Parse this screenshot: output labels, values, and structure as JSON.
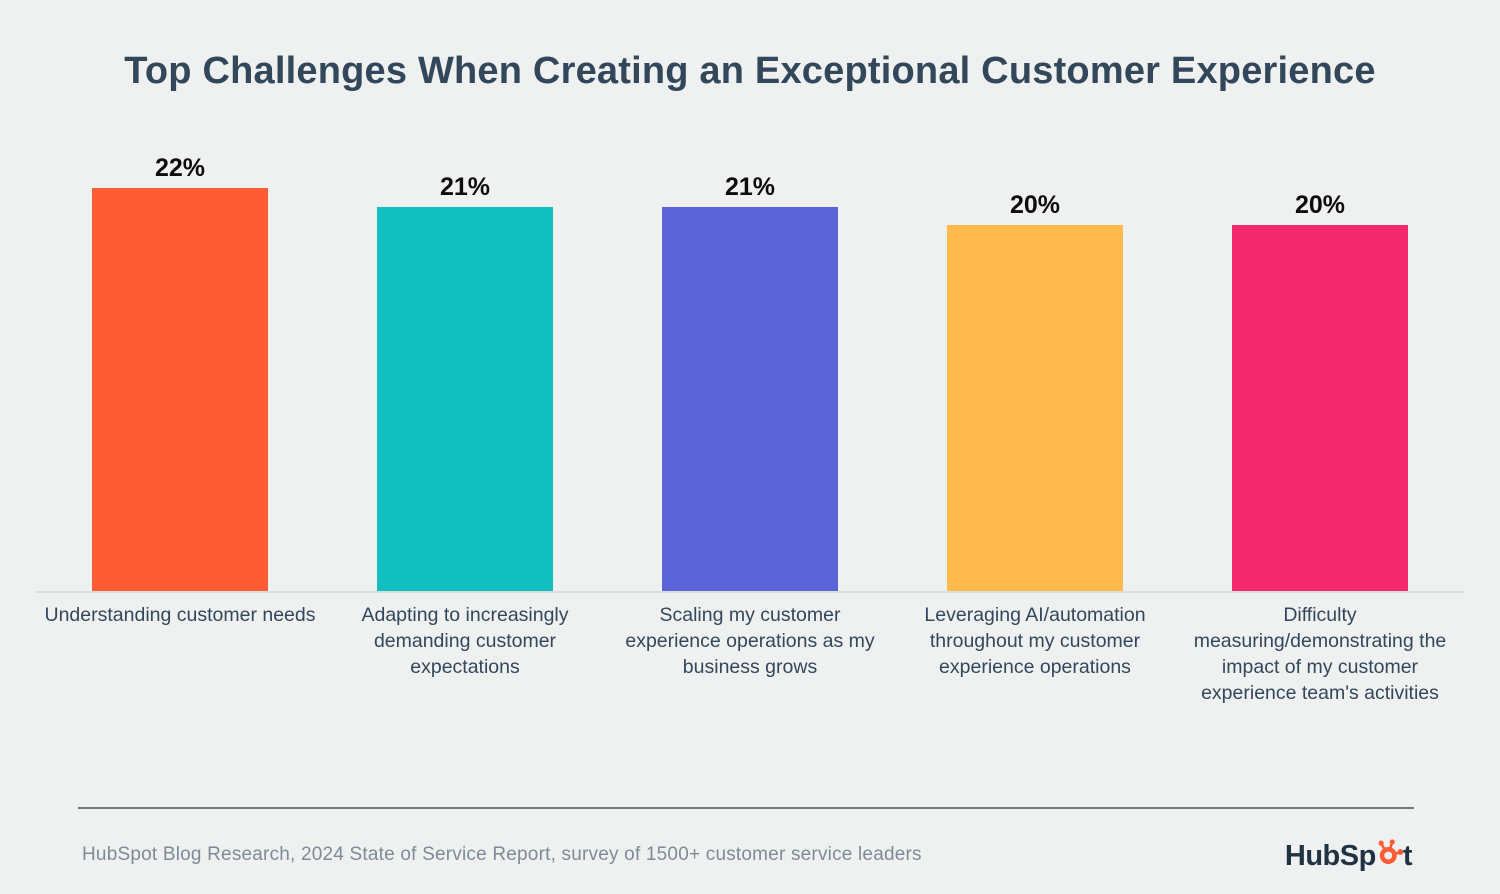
{
  "title": "Top Challenges When Creating an Exceptional Customer Experience",
  "chart_data": {
    "type": "bar",
    "title": "Top Challenges When Creating an Exceptional Customer Experience",
    "categories": [
      "Understanding customer needs",
      "Adapting to increasingly demanding customer expectations",
      "Scaling my customer experience operations as my business grows",
      "Leveraging AI/automation throughout my customer experience operations",
      "Difficulty measuring/demonstrating the impact of my customer experience team's activities"
    ],
    "values": [
      22,
      21,
      21,
      20,
      20
    ],
    "value_labels": [
      "22%",
      "21%",
      "21%",
      "20%",
      "20%"
    ],
    "bar_colors": [
      "#FF5C35",
      "#12BFBF",
      "#5C64D8",
      "#FFBA4E",
      "#F52A6E"
    ],
    "xlabel": "",
    "ylabel": "",
    "ylim": [
      0,
      24
    ],
    "grid": false,
    "legend": "none",
    "value_labels_position": "above-bars"
  },
  "footer": {
    "source": "HubSpot Blog Research, 2024 State of Service Report, survey of 1500+ customer service leaders",
    "logo_text_left": "HubSp",
    "logo_text_right": "t"
  },
  "colors": {
    "background": "#EFF1F1",
    "title_text": "#33475B",
    "category_text": "#33475B",
    "value_text": "#0D0D0D",
    "source_text": "#7D8B96",
    "logo_text": "#213343",
    "logo_accent": "#FF5C35",
    "baseline": "#DBDEDF",
    "divider": "#70777B"
  }
}
